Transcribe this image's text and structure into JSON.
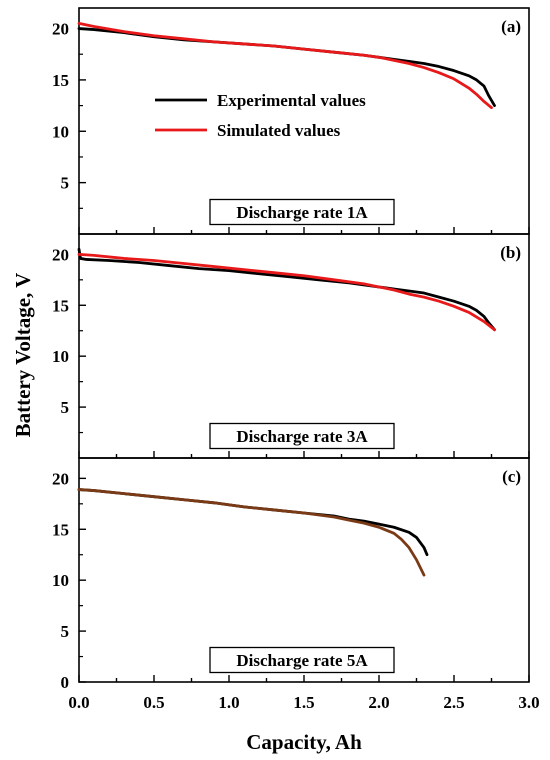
{
  "figure": {
    "ylabel": "Battery Voltage, V",
    "xlabel": "Capacity, Ah",
    "x_ticks": [
      "0.0",
      "0.5",
      "1.0",
      "1.5",
      "2.0",
      "2.5",
      "3.0"
    ]
  },
  "colors": {
    "experimental": "#000000",
    "simulated_ab": "#e8191a",
    "simulated_c": "#7a3a16"
  },
  "chart_data": [
    {
      "type": "line",
      "panel_label": "(a)",
      "annotation": "Discharge rate 1A",
      "xlim": [
        0,
        3.0
      ],
      "ylim": [
        0,
        22
      ],
      "y_ticks": [
        "5",
        "10",
        "15",
        "20"
      ],
      "legend": {
        "placement": "upper-center",
        "entries": [
          "Experimental values",
          "Simulated values"
        ]
      },
      "series": [
        {
          "name": "Experimental values",
          "x": [
            0.0,
            0.1,
            0.3,
            0.5,
            0.7,
            0.9,
            1.1,
            1.3,
            1.5,
            1.7,
            1.9,
            2.0,
            2.1,
            2.2,
            2.3,
            2.4,
            2.5,
            2.6,
            2.65,
            2.7,
            2.73,
            2.77
          ],
          "y": [
            20.0,
            19.9,
            19.6,
            19.2,
            18.9,
            18.7,
            18.5,
            18.3,
            18.0,
            17.7,
            17.4,
            17.2,
            17.0,
            16.8,
            16.6,
            16.3,
            15.9,
            15.4,
            15.0,
            14.4,
            13.5,
            12.5
          ]
        },
        {
          "name": "Simulated values",
          "x": [
            0.0,
            0.1,
            0.3,
            0.5,
            0.7,
            0.9,
            1.1,
            1.3,
            1.5,
            1.7,
            1.9,
            2.0,
            2.1,
            2.2,
            2.3,
            2.4,
            2.5,
            2.6,
            2.65,
            2.7,
            2.75
          ],
          "y": [
            20.5,
            20.2,
            19.7,
            19.3,
            19.0,
            18.7,
            18.5,
            18.3,
            18.0,
            17.7,
            17.4,
            17.2,
            16.9,
            16.6,
            16.2,
            15.7,
            15.1,
            14.2,
            13.6,
            12.9,
            12.3
          ]
        }
      ]
    },
    {
      "type": "line",
      "panel_label": "(b)",
      "annotation": "Discharge rate 3A",
      "xlim": [
        0,
        3.0
      ],
      "ylim": [
        0,
        22
      ],
      "y_ticks": [
        "5",
        "10",
        "15",
        "20"
      ],
      "series": [
        {
          "name": "Experimental values",
          "x": [
            0.0,
            0.01,
            0.05,
            0.2,
            0.4,
            0.6,
            0.8,
            1.0,
            1.2,
            1.4,
            1.6,
            1.8,
            2.0,
            2.1,
            2.2,
            2.3,
            2.4,
            2.5,
            2.6,
            2.65,
            2.7,
            2.73,
            2.77
          ],
          "y": [
            20.5,
            19.6,
            19.5,
            19.4,
            19.2,
            18.9,
            18.6,
            18.4,
            18.1,
            17.8,
            17.5,
            17.2,
            16.8,
            16.6,
            16.4,
            16.2,
            15.8,
            15.4,
            14.9,
            14.5,
            13.9,
            13.3,
            12.6
          ]
        },
        {
          "name": "Simulated values",
          "x": [
            0.0,
            0.1,
            0.3,
            0.5,
            0.7,
            0.9,
            1.1,
            1.3,
            1.5,
            1.7,
            1.9,
            2.0,
            2.1,
            2.2,
            2.3,
            2.4,
            2.5,
            2.6,
            2.7,
            2.77
          ],
          "y": [
            20.0,
            19.9,
            19.6,
            19.4,
            19.1,
            18.8,
            18.5,
            18.2,
            17.9,
            17.5,
            17.1,
            16.8,
            16.5,
            16.1,
            15.8,
            15.4,
            14.9,
            14.3,
            13.4,
            12.6
          ]
        }
      ]
    },
    {
      "type": "line",
      "panel_label": "(c)",
      "annotation": "Discharge rate 5A",
      "xlim": [
        0,
        3.0
      ],
      "ylim": [
        0,
        22
      ],
      "y_ticks": [
        "0",
        "5",
        "10",
        "15",
        "20"
      ],
      "series": [
        {
          "name": "Experimental values",
          "x": [
            0.0,
            0.1,
            0.3,
            0.5,
            0.7,
            0.9,
            1.1,
            1.3,
            1.5,
            1.7,
            1.8,
            1.9,
            2.0,
            2.1,
            2.2,
            2.25,
            2.3,
            2.32
          ],
          "y": [
            18.9,
            18.8,
            18.5,
            18.2,
            17.9,
            17.6,
            17.2,
            16.9,
            16.6,
            16.3,
            16.0,
            15.8,
            15.5,
            15.2,
            14.7,
            14.2,
            13.2,
            12.5
          ]
        },
        {
          "name": "Simulated values",
          "x": [
            0.0,
            0.1,
            0.3,
            0.5,
            0.7,
            0.9,
            1.1,
            1.3,
            1.5,
            1.7,
            1.8,
            1.9,
            2.0,
            2.1,
            2.15,
            2.2,
            2.25,
            2.3
          ],
          "y": [
            18.9,
            18.8,
            18.5,
            18.2,
            17.9,
            17.6,
            17.2,
            16.9,
            16.6,
            16.2,
            15.9,
            15.6,
            15.2,
            14.6,
            14.0,
            13.2,
            12.0,
            10.5
          ]
        }
      ]
    }
  ]
}
